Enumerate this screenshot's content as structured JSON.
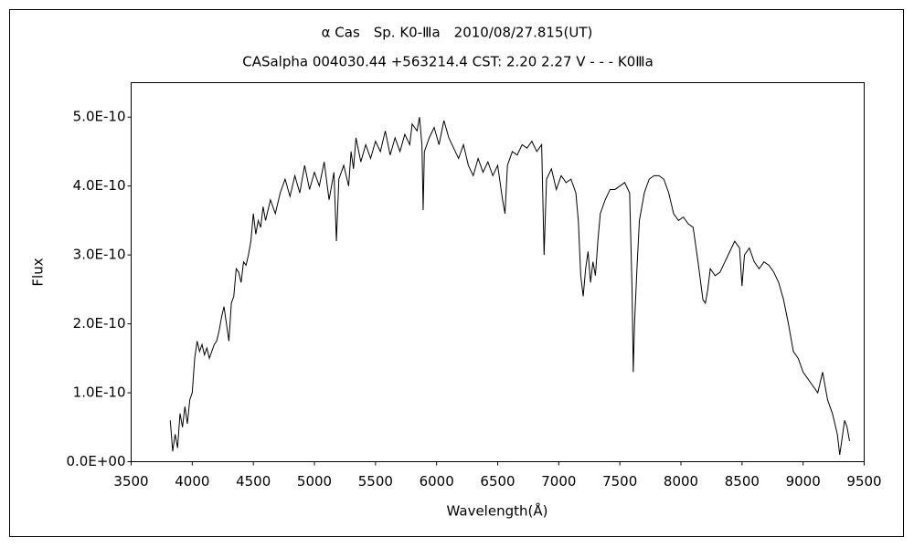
{
  "chart_data": {
    "type": "line",
    "title": "α Cas　Sp. K0-Ⅲa　2010/08/27.815(UT)",
    "subtitle": "CASalpha 004030.44 +563214.4 CST: 2.20 2.27 V - - - K0Ⅲa",
    "xlabel": "Wavelength(Å)",
    "ylabel": "Flux",
    "xlim": [
      3500,
      9500
    ],
    "xticks": [
      3500,
      4000,
      4500,
      5000,
      5500,
      6000,
      6500,
      7000,
      7500,
      8000,
      8500,
      9000,
      9500
    ],
    "ylim": [
      0,
      5.5e-10
    ],
    "yticks": [
      {
        "value": 0,
        "label": "0.0E+00"
      },
      {
        "value": 1e-10,
        "label": "1.0E-10"
      },
      {
        "value": 2e-10,
        "label": "2.0E-10"
      },
      {
        "value": 3e-10,
        "label": "3.0E-10"
      },
      {
        "value": 4e-10,
        "label": "4.0E-10"
      },
      {
        "value": 5e-10,
        "label": "5.0E-10"
      }
    ],
    "grid": false,
    "color": "#000000",
    "x": [
      3820,
      3840,
      3860,
      3880,
      3900,
      3920,
      3940,
      3960,
      3980,
      4000,
      4020,
      4040,
      4060,
      4080,
      4100,
      4120,
      4140,
      4160,
      4180,
      4200,
      4220,
      4240,
      4260,
      4280,
      4300,
      4320,
      4340,
      4360,
      4380,
      4400,
      4420,
      4440,
      4460,
      4480,
      4500,
      4520,
      4540,
      4560,
      4580,
      4600,
      4640,
      4680,
      4720,
      4760,
      4800,
      4840,
      4880,
      4920,
      4960,
      5000,
      5040,
      5080,
      5120,
      5160,
      5180,
      5200,
      5240,
      5280,
      5300,
      5320,
      5340,
      5380,
      5420,
      5460,
      5500,
      5540,
      5580,
      5620,
      5660,
      5700,
      5740,
      5780,
      5800,
      5840,
      5860,
      5880,
      5890,
      5900,
      5940,
      5980,
      6020,
      6060,
      6100,
      6140,
      6180,
      6220,
      6260,
      6300,
      6340,
      6380,
      6420,
      6460,
      6500,
      6540,
      6560,
      6580,
      6620,
      6660,
      6700,
      6740,
      6780,
      6820,
      6860,
      6880,
      6900,
      6940,
      6980,
      7020,
      7060,
      7100,
      7140,
      7160,
      7180,
      7200,
      7220,
      7240,
      7260,
      7280,
      7300,
      7320,
      7340,
      7380,
      7420,
      7460,
      7500,
      7540,
      7580,
      7600,
      7610,
      7620,
      7640,
      7660,
      7700,
      7740,
      7780,
      7820,
      7860,
      7900,
      7940,
      7980,
      8020,
      8060,
      8100,
      8140,
      8180,
      8200,
      8220,
      8240,
      8280,
      8320,
      8360,
      8400,
      8440,
      8480,
      8500,
      8520,
      8560,
      8600,
      8640,
      8680,
      8720,
      8760,
      8800,
      8840,
      8880,
      8920,
      8960,
      9000,
      9040,
      9080,
      9120,
      9160,
      9200,
      9240,
      9280,
      9300,
      9320,
      9340,
      9360,
      9380
    ],
    "values": [
      6e-11,
      1.5e-11,
      4e-11,
      2e-11,
      7e-11,
      5e-11,
      8e-11,
      5.5e-11,
      9e-11,
      1e-10,
      1.5e-10,
      1.75e-10,
      1.6e-10,
      1.7e-10,
      1.55e-10,
      1.65e-10,
      1.5e-10,
      1.6e-10,
      1.7e-10,
      1.75e-10,
      1.9e-10,
      2.1e-10,
      2.25e-10,
      2e-10,
      1.75e-10,
      2.3e-10,
      2.4e-10,
      2.8e-10,
      2.75e-10,
      2.6e-10,
      2.9e-10,
      2.85e-10,
      3e-10,
      3.2e-10,
      3.6e-10,
      3.3e-10,
      3.5e-10,
      3.4e-10,
      3.7e-10,
      3.5e-10,
      3.8e-10,
      3.6e-10,
      3.9e-10,
      4.1e-10,
      3.85e-10,
      4.15e-10,
      3.9e-10,
      4.3e-10,
      3.95e-10,
      4.2e-10,
      4e-10,
      4.35e-10,
      3.8e-10,
      4.2e-10,
      3.2e-10,
      4.1e-10,
      4.3e-10,
      4e-10,
      4.5e-10,
      4.25e-10,
      4.7e-10,
      4.35e-10,
      4.6e-10,
      4.4e-10,
      4.65e-10,
      4.5e-10,
      4.8e-10,
      4.45e-10,
      4.7e-10,
      4.5e-10,
      4.75e-10,
      4.6e-10,
      4.9e-10,
      4.8e-10,
      5e-10,
      4.6e-10,
      3.65e-10,
      4.5e-10,
      4.7e-10,
      4.85e-10,
      4.6e-10,
      4.95e-10,
      4.7e-10,
      4.55e-10,
      4.4e-10,
      4.6e-10,
      4.3e-10,
      4.15e-10,
      4.4e-10,
      4.2e-10,
      4.35e-10,
      4.15e-10,
      4.3e-10,
      3.8e-10,
      3.6e-10,
      4.3e-10,
      4.5e-10,
      4.45e-10,
      4.6e-10,
      4.55e-10,
      4.65e-10,
      4.5e-10,
      4.6e-10,
      3e-10,
      4.1e-10,
      4.25e-10,
      3.95e-10,
      4.15e-10,
      4.05e-10,
      4.1e-10,
      3.9e-10,
      3.5e-10,
      2.7e-10,
      2.4e-10,
      2.8e-10,
      3.05e-10,
      2.6e-10,
      2.9e-10,
      2.7e-10,
      3.2e-10,
      3.6e-10,
      3.8e-10,
      3.95e-10,
      3.95e-10,
      4e-10,
      4.05e-10,
      3.9e-10,
      2.5e-10,
      1.3e-10,
      2e-10,
      2.8e-10,
      3.5e-10,
      3.9e-10,
      4.1e-10,
      4.15e-10,
      4.15e-10,
      4.1e-10,
      3.9e-10,
      3.6e-10,
      3.5e-10,
      3.55e-10,
      3.45e-10,
      3.4e-10,
      2.9e-10,
      2.35e-10,
      2.3e-10,
      2.5e-10,
      2.8e-10,
      2.7e-10,
      2.75e-10,
      2.9e-10,
      3.05e-10,
      3.2e-10,
      3.1e-10,
      2.55e-10,
      3e-10,
      3.1e-10,
      2.9e-10,
      2.8e-10,
      2.9e-10,
      2.85e-10,
      2.75e-10,
      2.6e-10,
      2.35e-10,
      2e-10,
      1.6e-10,
      1.5e-10,
      1.3e-10,
      1.2e-10,
      1.1e-10,
      1e-10,
      1.3e-10,
      9e-11,
      7e-11,
      4e-11,
      1e-11,
      3.5e-11,
      6e-11,
      5e-11,
      3e-11
    ]
  }
}
